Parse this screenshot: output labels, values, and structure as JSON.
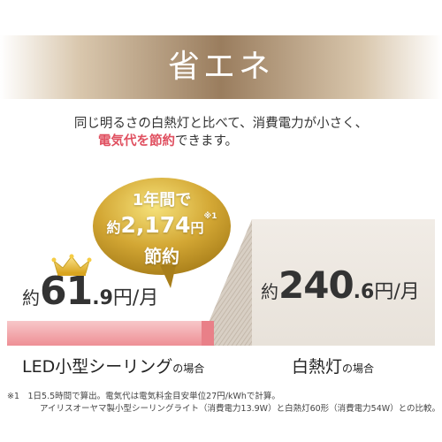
{
  "title": "省エネ",
  "intro": {
    "line1": "同じ明るさの白熱灯と比べて、消費電力が小さく、",
    "line2_highlight": "電気代を節約",
    "line2_rest": "できます。"
  },
  "savings_bubble": {
    "line1": "1年間で",
    "prefix": "約",
    "amount": "2,174",
    "unit": "円",
    "note": "※1",
    "line3": "節約"
  },
  "led": {
    "prefix": "約",
    "value_int": "61",
    "value_dec": ".9",
    "unit": "円/月",
    "label_main": "LED小型シーリング",
    "label_suffix": "の場合"
  },
  "bulb": {
    "prefix": "約",
    "value_int": "240",
    "value_dec": ".6",
    "unit": "円/月",
    "label_main": "白熱灯",
    "label_suffix": "の場合"
  },
  "footnote": {
    "line1": "※1　1日5.5時間で算出。電気代は電気料金目安単位27円/kWhで計算。",
    "line2": "アイリスオーヤマ製小型シーリングライト（消費電力13.9W）と白熱灯60形（消費電力54W）との比較。"
  },
  "colors": {
    "accent_pink": "#e05060",
    "gold": "#c9a227",
    "band_brown": "#9a7d5e"
  },
  "icons": [
    "crown-icon"
  ]
}
